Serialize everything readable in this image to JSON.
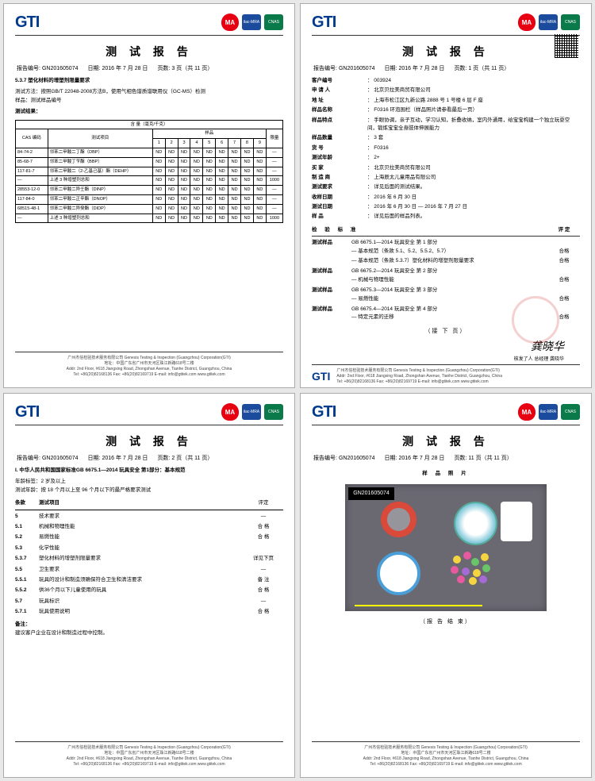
{
  "common": {
    "logo_text": "GTI",
    "title": "测 试 报 告",
    "report_label": "报告编号:",
    "report_no": "GN201605074",
    "date_label": "日期:",
    "date": "2016 年 7 月 28 日",
    "page_label": "页数:",
    "cert_ma": "MA",
    "cert_cnas": "CNAS",
    "footer_company": "广州杰信检验技术服务有限公司  Genesis Testing & Inspection (Guangzhou) Corporation(GTI)",
    "footer_addr1": "地址：中国广东省广州市天河区珠江新路618号二楼",
    "footer_addr2": "Addr: 2nd Floor, #618 Jiangxing Road, Zhongshan Avenue, Tianhe District, Guangzhou, China",
    "footer_contact": "Tel: +86(20)82168136    Fax: +86(20)82169719    E-mail: info@gtitek.com    www.gtitek.com",
    "nextpage": "（接 下 页）"
  },
  "p1": {
    "page_no": "3 页（共 11 页）",
    "sec_h1": "5.3.7  塑化材料的增塑剂限量要求",
    "sec_h2": "测试方法：按照GB/T 22048-2008方法B，使用气相色谱质谱联用仪（GC-MS）检测",
    "sec_h3": "样品：测试样品编号",
    "sec_h4": "测试结果：",
    "tbl_unit": "含 量（毫克/千克）",
    "th_cas": "CAS 编码",
    "th_item": "测试项目",
    "th_sample": "样品",
    "th_limit": "限量",
    "cols": [
      "1",
      "2",
      "3",
      "4",
      "5",
      "6",
      "7",
      "8",
      "9"
    ],
    "rows": [
      {
        "cas": "84-74-2",
        "item": "邻苯二甲酸二丁酯（DBP）",
        "vals": [
          "ND",
          "ND",
          "ND",
          "ND",
          "ND",
          "ND",
          "ND",
          "ND",
          "ND"
        ],
        "lim": "—"
      },
      {
        "cas": "85-68-7",
        "item": "邻苯二甲酸丁苄酯（BBP）",
        "vals": [
          "ND",
          "ND",
          "ND",
          "ND",
          "ND",
          "ND",
          "ND",
          "ND",
          "ND"
        ],
        "lim": "—"
      },
      {
        "cas": "117-81-7",
        "item": "邻苯二甲酸二（2-乙基己基）酯（DEHP）",
        "vals": [
          "ND",
          "ND",
          "ND",
          "ND",
          "ND",
          "ND",
          "ND",
          "ND",
          "ND"
        ],
        "lim": "—"
      },
      {
        "cas": "—",
        "item": "上述 3 种增塑剂总和",
        "vals": [
          "ND",
          "ND",
          "ND",
          "ND",
          "ND",
          "ND",
          "ND",
          "ND",
          "ND"
        ],
        "lim": "1000"
      },
      {
        "cas": "28553-12-0",
        "item": "邻苯二甲酸二异壬酯（DINP）",
        "vals": [
          "ND",
          "ND",
          "ND",
          "ND",
          "ND",
          "ND",
          "ND",
          "ND",
          "ND"
        ],
        "lim": "—"
      },
      {
        "cas": "117-84-0",
        "item": "邻苯二甲酸二正辛酯（DNOP）",
        "vals": [
          "ND",
          "ND",
          "ND",
          "ND",
          "ND",
          "ND",
          "ND",
          "ND",
          "ND"
        ],
        "lim": "—"
      },
      {
        "cas": "68515-48-1",
        "item": "邻苯二甲酸二异癸酯（DIDP）",
        "vals": [
          "ND",
          "ND",
          "ND",
          "ND",
          "ND",
          "ND",
          "ND",
          "ND",
          "ND"
        ],
        "lim": "—"
      },
      {
        "cas": "—",
        "item": "上述 3 种增塑剂总和",
        "vals": [
          "ND",
          "ND",
          "ND",
          "ND",
          "ND",
          "ND",
          "ND",
          "ND",
          "ND"
        ],
        "lim": "1000"
      }
    ]
  },
  "p2": {
    "page_no": "1 页（共 11 页）",
    "rows": [
      {
        "l": "客户编号",
        "v": "： 003924"
      },
      {
        "l": "申 请 人",
        "v": "： 北京贝拉美商贸有限公司"
      },
      {
        "l": "地    址",
        "v": "： 上海市松江区九新公路 2888 号 1 号楼 6 层 F 座"
      },
      {
        "l": "样品名称",
        "v": "： F0316 环泡围栏（样品照片请参看最后一页）"
      },
      {
        "l": "样品特点",
        "v": "： 手眼协调，亲子互动，学习认知，折叠收纳，室内外通用，给宝宝构建一个独立玩耍空间，锻炼宝宝全身肢体伸展能力"
      },
      {
        "l": "样品数量",
        "v": "： 3 套"
      },
      {
        "l": "货    号",
        "v": "： F0316"
      },
      {
        "l": "测试年龄",
        "v": "： 2+"
      },
      {
        "l": "买    家",
        "v": "： 北京贝拉美商贸有限公司"
      },
      {
        "l": "制 造 商",
        "v": "： 上海辰太儿童用品有限公司"
      },
      {
        "l": "测试要求",
        "v": "： 详见后面的测试结果。"
      },
      {
        "l": "收样日期",
        "v": "： 2016 年 6 月 30 日"
      },
      {
        "l": "测试日期",
        "v": "： 2016 年 6 月 30 日 — 2016 年 7 月 27 日"
      },
      {
        "l": "样    品",
        "v": "： 详见后面的样品列表。"
      }
    ],
    "std_label": "检  验  标  准",
    "verdict_label": "评 定",
    "results": [
      {
        "std": "GB 6675.1—2014 玩具安全 第 1 部分",
        "sub": "— 基本规范（条款 5.1、5.2、5.5.2、5.7）",
        "v": "合格"
      },
      {
        "std": "",
        "sub": "— 基本规范（条款 5.3.7）塑化材料的增塑剂限量要求",
        "v": "合格"
      },
      {
        "std": "GB 6675.2—2014 玩具安全 第 2 部分",
        "sub": "— 机械与物理性能",
        "v": "合格"
      },
      {
        "std": "GB 6675.3—2014 玩具安全 第 3 部分",
        "sub": "— 易燃性能",
        "v": "合格"
      },
      {
        "std": "GB 6675.4—2014 玩具安全 第 4 部分",
        "sub": "— 特定元素的迁移",
        "v": "合格"
      }
    ],
    "lbl_test": "测试样品",
    "sig": "龚晓华",
    "sig_label": "核发了人 总经理 龚晓华"
  },
  "p3": {
    "page_no": "2 页（共 11 页）",
    "h1": "I. 中华人民共和国国家标准GB 6675.1—2014 玩具安全 第1部分：基本规范",
    "h2": "年龄标签：2 岁及以上",
    "h3": "测试年龄：按 18 个月以上至 96 个月以下的最严格要求测试",
    "th_num": "条款",
    "th_item": "测试项目",
    "th_res": "评定",
    "rows": [
      {
        "n": "5",
        "i": "技术要求",
        "r": "—"
      },
      {
        "n": "5.1",
        "i": "机械和物理性能",
        "r": "合 格"
      },
      {
        "n": "5.2",
        "i": "易燃性能",
        "r": "合 格"
      },
      {
        "n": "5.3",
        "i": "化学性能",
        "r": ""
      },
      {
        "n": "5.3.7",
        "i": "塑化材料的增塑剂限量要求",
        "r": "详见下页"
      },
      {
        "n": "5.5",
        "i": "卫生要求",
        "r": "—"
      },
      {
        "n": "5.5.1",
        "i": "玩具的设计和制造须确保符合卫生和清洁要求",
        "r": "备 注"
      },
      {
        "n": "5.5.2",
        "i": "供36个月以下儿童使用的玩具",
        "r": "合 格"
      },
      {
        "n": "5.7",
        "i": "玩具标识",
        "r": "—"
      },
      {
        "n": "5.7.1",
        "i": "玩具使用说明",
        "r": "合 格"
      }
    ],
    "note_h": "备注：",
    "note_t": "建议客户企业在设计和制造过程中控制。"
  },
  "p4": {
    "page_no": "11 页（共 11 页）",
    "sec": "样 品 照 片",
    "tag": "GN201605074",
    "end": "（报 告 结 束）"
  }
}
